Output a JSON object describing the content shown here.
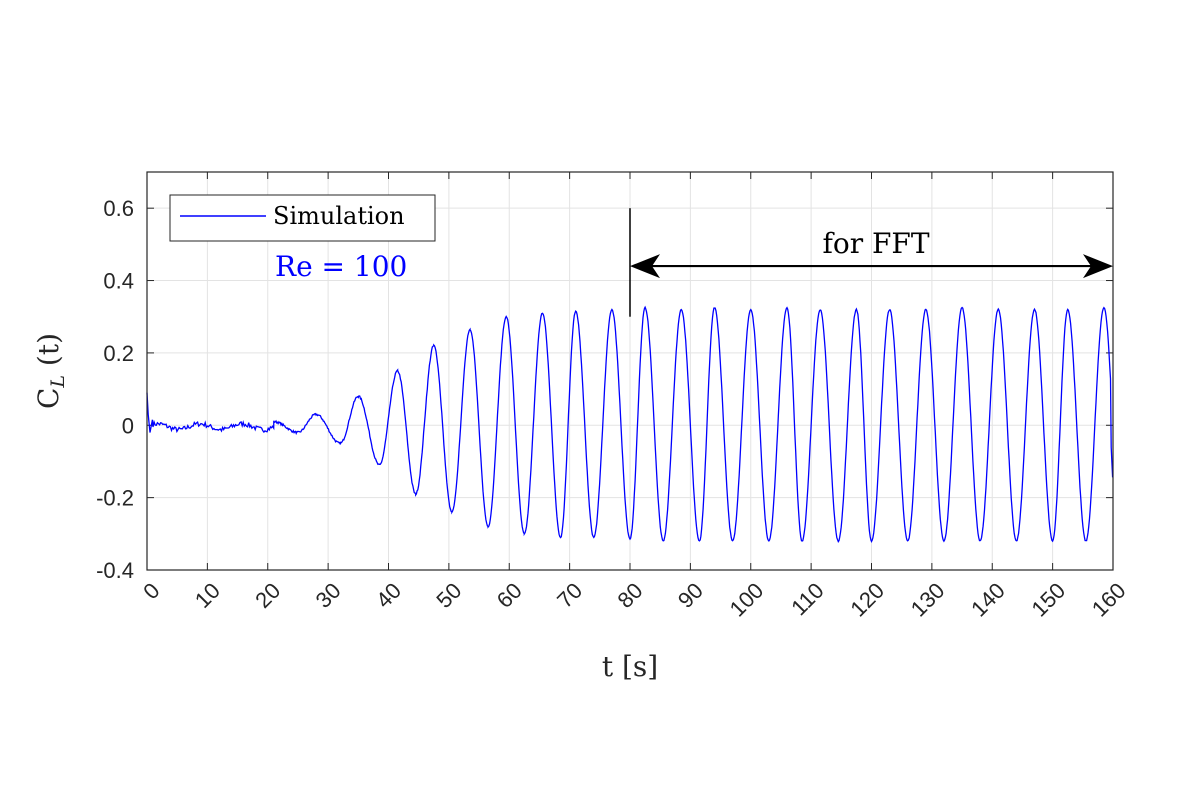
{
  "chart_data": {
    "type": "line",
    "title": "",
    "xlabel": "t [s]",
    "ylabel_main": "C",
    "ylabel_sub": "L",
    "ylabel_tail": " (t)",
    "xlim": [
      0,
      160
    ],
    "ylim": [
      -0.4,
      0.7
    ],
    "grid": true,
    "x_ticks": [
      "0",
      "10",
      "20",
      "30",
      "40",
      "50",
      "60",
      "70",
      "80",
      "90",
      "100",
      "110",
      "120",
      "130",
      "140",
      "150",
      "160"
    ],
    "y_ticks": [
      "-0.4",
      "-0.2",
      "0",
      "0.2",
      "0.4",
      "0.6"
    ],
    "y_tick_values": [
      -0.4,
      -0.2,
      0,
      0.2,
      0.4,
      0.6
    ],
    "legend": {
      "position": "top-left",
      "entries": [
        "Simulation"
      ]
    },
    "series": [
      {
        "name": "Simulation",
        "color": "#0000ff",
        "description_params": {
          "period_s": 5.8,
          "peak_times": [
            21,
            28,
            35,
            41.5,
            47.5,
            53.5,
            59.5,
            65.5,
            71,
            77,
            82.5,
            88.5,
            94,
            100,
            106,
            111.5,
            117.5,
            123,
            129,
            135,
            141,
            147,
            152.5,
            158.5
          ],
          "peak_values": [
            0.01,
            0.03,
            0.08,
            0.15,
            0.22,
            0.265,
            0.3,
            0.31,
            0.315,
            0.32,
            0.325,
            0.32,
            0.325,
            0.32,
            0.325,
            0.32,
            0.32,
            0.32,
            0.32,
            0.325,
            0.32,
            0.32,
            0.32,
            0.325
          ],
          "trough_times": [
            25,
            32,
            38.5,
            44.5,
            50.5,
            56.5,
            62.5,
            68.5,
            74,
            80,
            85.5,
            91.5,
            97,
            103,
            108.5,
            114.5,
            120,
            126,
            132,
            138,
            144,
            150,
            155.5
          ],
          "trough_values": [
            -0.02,
            -0.05,
            -0.11,
            -0.19,
            -0.24,
            -0.28,
            -0.3,
            -0.31,
            -0.31,
            -0.315,
            -0.32,
            -0.32,
            -0.32,
            -0.32,
            -0.32,
            -0.32,
            -0.32,
            -0.32,
            -0.32,
            -0.32,
            -0.32,
            -0.32,
            -0.32
          ]
        }
      }
    ],
    "annotations": [
      {
        "text": "Re = 100",
        "color": "#0000ff"
      },
      {
        "text": "for FFT",
        "color": "#000000",
        "x_range": [
          80,
          160
        ],
        "y": 0.44,
        "marker_x": 80,
        "marker_y_range": [
          0.3,
          0.6
        ]
      }
    ]
  }
}
